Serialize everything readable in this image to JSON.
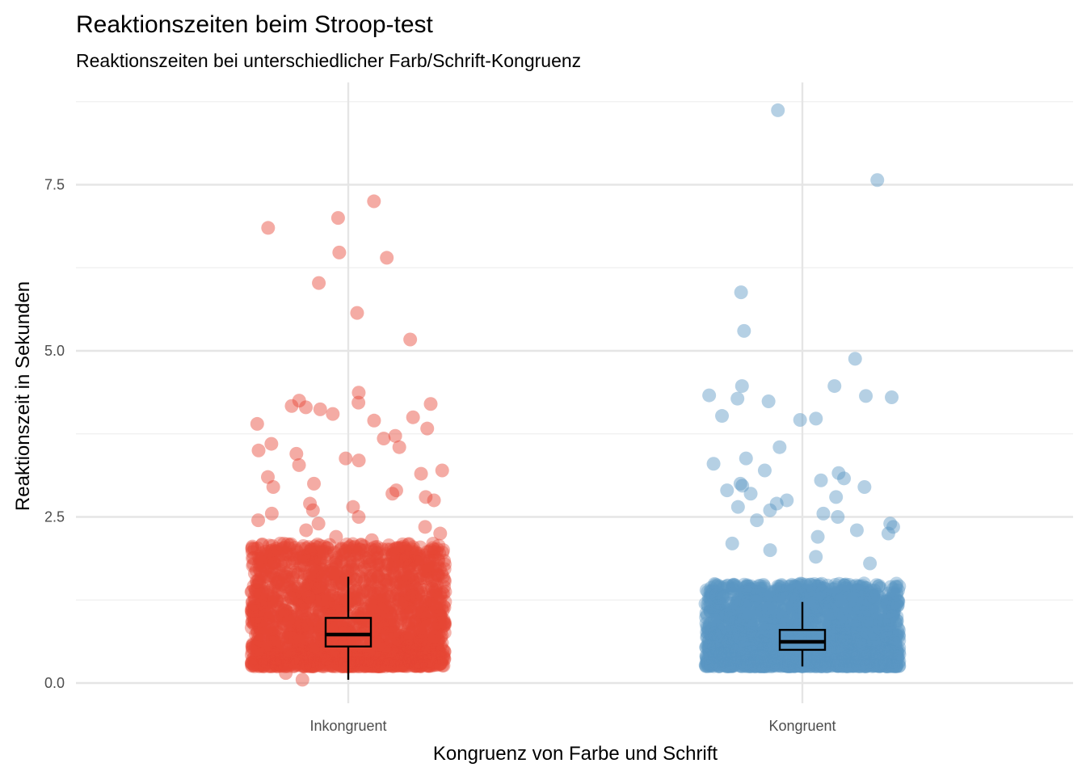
{
  "chart_data": {
    "type": "jitter-boxplot",
    "title": "Reaktionszeiten beim Stroop-test",
    "subtitle": "Reaktionszeiten bei unterschiedlicher Farb/Schrift-Kongruenz",
    "xlabel": "Kongruenz von Farbe und Schrift",
    "ylabel": "Reaktionszeit in Sekunden",
    "categories": [
      "Inkongruent",
      "Kongruent"
    ],
    "ylim": [
      -0.2,
      8.9
    ],
    "yticks": [
      0.0,
      2.5,
      5.0,
      7.5
    ],
    "ytick_labels": [
      "0.0",
      "2.5",
      "5.0",
      "7.5"
    ],
    "grid": true,
    "legend": "none",
    "series": [
      {
        "category": "Inkongruent",
        "color": "#E64535",
        "boxplot": {
          "whisker_low": 0.05,
          "q1": 0.55,
          "median": 0.73,
          "q3": 0.98,
          "whisker_high": 1.6
        },
        "outliers": [
          7.25,
          7.0,
          6.85,
          6.48,
          6.4,
          6.02,
          5.57,
          5.17,
          4.37,
          4.25,
          4.22,
          4.2,
          4.17,
          4.15,
          4.12,
          4.05,
          4.0,
          3.95,
          3.9,
          3.83,
          3.72,
          3.68,
          3.6,
          3.55,
          3.5,
          3.45,
          3.38,
          3.35,
          3.28,
          3.2,
          3.15,
          3.1,
          3.0,
          2.95,
          2.9,
          2.85,
          2.8,
          2.75,
          2.7,
          2.65,
          2.6,
          2.55,
          2.5,
          2.45,
          2.4,
          2.35,
          2.3,
          2.25,
          2.2,
          2.15,
          0.15,
          0.05
        ],
        "bulk_range": [
          0.25,
          2.1
        ]
      },
      {
        "category": "Kongruent",
        "color": "#5B96C4",
        "boxplot": {
          "whisker_low": 0.25,
          "q1": 0.5,
          "median": 0.62,
          "q3": 0.8,
          "whisker_high": 1.22
        },
        "outliers": [
          8.62,
          7.57,
          5.88,
          5.3,
          4.88,
          4.47,
          4.47,
          4.33,
          4.32,
          4.3,
          4.28,
          4.24,
          4.02,
          3.98,
          3.96,
          3.55,
          3.38,
          3.3,
          3.2,
          3.16,
          3.08,
          3.05,
          3.0,
          2.97,
          2.95,
          2.9,
          2.85,
          2.8,
          2.75,
          2.7,
          2.65,
          2.6,
          2.55,
          2.5,
          2.45,
          2.4,
          2.35,
          2.3,
          2.25,
          2.2,
          2.1,
          2.0,
          1.9,
          1.8
        ],
        "bulk_range": [
          0.25,
          1.5
        ]
      }
    ]
  }
}
